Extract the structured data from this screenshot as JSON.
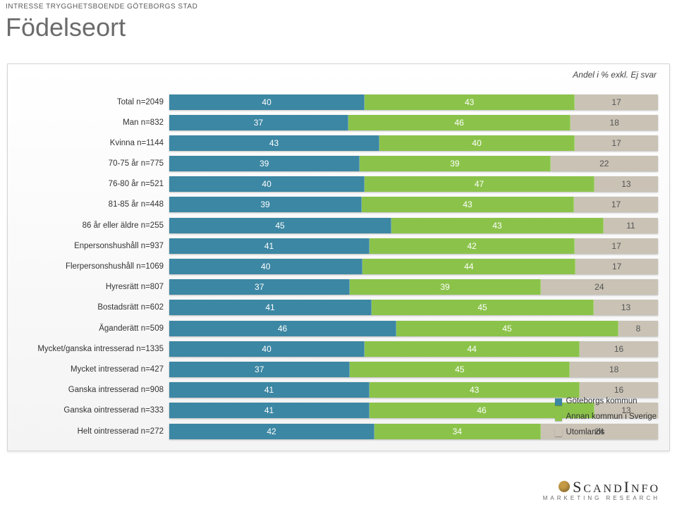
{
  "header": {
    "kicker": "INTRESSE TRYGGHETSBOENDE GÖTEBORGS STAD",
    "title": "Födelseort",
    "subtitle": "Andel i % exkl. Ej svar"
  },
  "chart": {
    "type": "stacked-bar-horizontal",
    "unit": "percent",
    "value_fontsize": 12,
    "label_fontsize": 11.5,
    "background_color": "#ffffff",
    "panel_border_color": "#d4d4d4",
    "series": [
      {
        "key": "a",
        "name": "Göteborgs kommun",
        "color": "#3c87a3"
      },
      {
        "key": "b",
        "name": "Annan kommun i Sverige",
        "color": "#8bc34a"
      },
      {
        "key": "c",
        "name": "Utomlands",
        "color": "#c9c2b5"
      }
    ],
    "rows": [
      {
        "label": "Total n=2049",
        "a": 40,
        "b": 43,
        "c": 17
      },
      {
        "label": "Man n=832",
        "a": 37,
        "b": 46,
        "c": 18
      },
      {
        "label": "Kvinna n=1144",
        "a": 43,
        "b": 40,
        "c": 17
      },
      {
        "label": "70-75 år n=775",
        "a": 39,
        "b": 39,
        "c": 22
      },
      {
        "label": "76-80 år n=521",
        "a": 40,
        "b": 47,
        "c": 13
      },
      {
        "label": "81-85 år n=448",
        "a": 39,
        "b": 43,
        "c": 17
      },
      {
        "label": "86 år eller äldre n=255",
        "a": 45,
        "b": 43,
        "c": 11
      },
      {
        "label": "Enpersonshushåll n=937",
        "a": 41,
        "b": 42,
        "c": 17
      },
      {
        "label": "Flerpersonshushåll n=1069",
        "a": 40,
        "b": 44,
        "c": 17
      },
      {
        "label": "Hyresrätt n=807",
        "a": 37,
        "b": 39,
        "c": 24
      },
      {
        "label": "Bostadsrätt n=602",
        "a": 41,
        "b": 45,
        "c": 13
      },
      {
        "label": "Äganderätt n=509",
        "a": 46,
        "b": 45,
        "c": 8
      },
      {
        "label": "Mycket/ganska intresserad n=1335",
        "a": 40,
        "b": 44,
        "c": 16
      },
      {
        "label": "Mycket intresserad n=427",
        "a": 37,
        "b": 45,
        "c": 18
      },
      {
        "label": "Ganska intresserad n=908",
        "a": 41,
        "b": 43,
        "c": 16
      },
      {
        "label": "Ganska ointresserad n=333",
        "a": 41,
        "b": 46,
        "c": 13
      },
      {
        "label": "Helt ointresserad n=272",
        "a": 42,
        "b": 34,
        "c": 24
      }
    ]
  },
  "logo": {
    "top": "SCANDINFO",
    "tagline": "MARKETING RESEARCH"
  }
}
